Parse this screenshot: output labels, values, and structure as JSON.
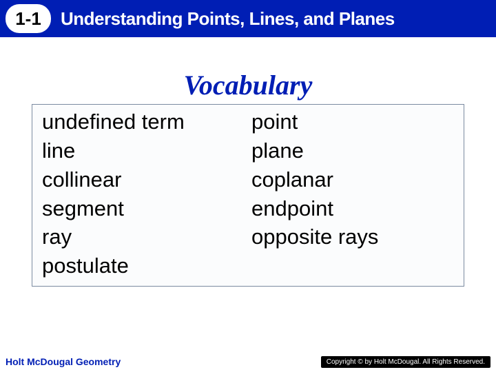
{
  "header": {
    "section_number": "1-1",
    "title": "Understanding Points, Lines, and Planes",
    "bar_color": "#001eb4",
    "badge_bg": "#ffffff",
    "title_color": "#ffffff",
    "title_fontsize": 26
  },
  "vocab": {
    "heading": "Vocabulary",
    "heading_color": "#001eb4",
    "heading_fontsize": 40,
    "box_border_color": "#7a8aa0",
    "box_bg": "#fbfcfd",
    "term_fontsize": 31,
    "term_color": "#000000",
    "pairs": [
      {
        "left": "undefined term",
        "right": "point"
      },
      {
        "left": "line",
        "right": "plane"
      },
      {
        "left": "collinear",
        "right": "coplanar"
      },
      {
        "left": "segment",
        "right": "endpoint"
      },
      {
        "left": "ray",
        "right": "opposite rays"
      },
      {
        "left": "postulate",
        "right": ""
      }
    ]
  },
  "footer": {
    "left_text": "Holt McDougal Geometry",
    "left_color": "#001eb4",
    "right_text": "Copyright © by Holt McDougal. All Rights Reserved.",
    "right_bg": "#000000",
    "right_color": "#ffffff"
  },
  "background_color": "#ffffff"
}
